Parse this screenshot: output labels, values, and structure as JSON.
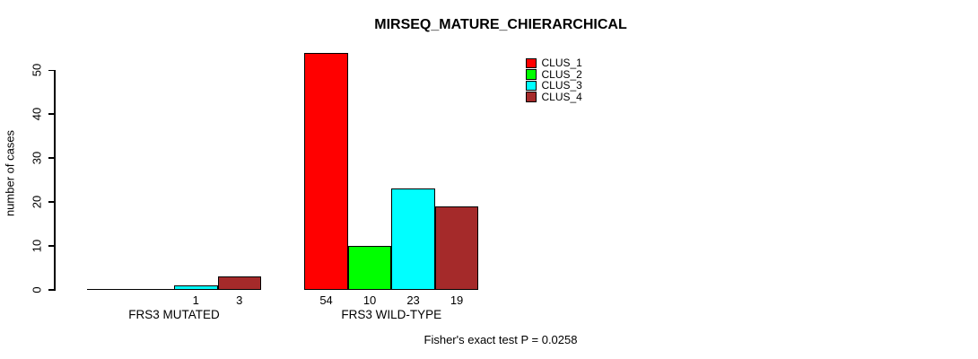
{
  "title": "MIRSEQ_MATURE_CHIERARCHICAL",
  "footnote": "Fisher's exact test P = 0.0258",
  "chart_data": {
    "type": "bar",
    "title": "MIRSEQ_MATURE_CHIERARCHICAL",
    "xlabel": "",
    "ylabel": "number of cases",
    "categories": [
      "FRS3 MUTATED",
      "FRS3 WILD-TYPE"
    ],
    "series": [
      {
        "name": "CLUS_1",
        "color": "#ff0000",
        "values": [
          0,
          54
        ]
      },
      {
        "name": "CLUS_2",
        "color": "#00ff00",
        "values": [
          0,
          10
        ]
      },
      {
        "name": "CLUS_3",
        "color": "#00ffff",
        "values": [
          1,
          23
        ]
      },
      {
        "name": "CLUS_4",
        "color": "#a52a2a",
        "values": [
          3,
          19
        ]
      }
    ],
    "bar_value_labels": [
      [
        "",
        "",
        "1",
        "3"
      ],
      [
        "54",
        "10",
        "23",
        "19"
      ]
    ],
    "yticks": [
      0,
      10,
      20,
      30,
      40,
      50
    ],
    "ylim": [
      0,
      50
    ],
    "grid": false,
    "legend_position": "top-right",
    "legend_entries": [
      "CLUS_1",
      "CLUS_2",
      "CLUS_3",
      "CLUS_4"
    ],
    "annotation": "Fisher's exact test P = 0.0258"
  }
}
